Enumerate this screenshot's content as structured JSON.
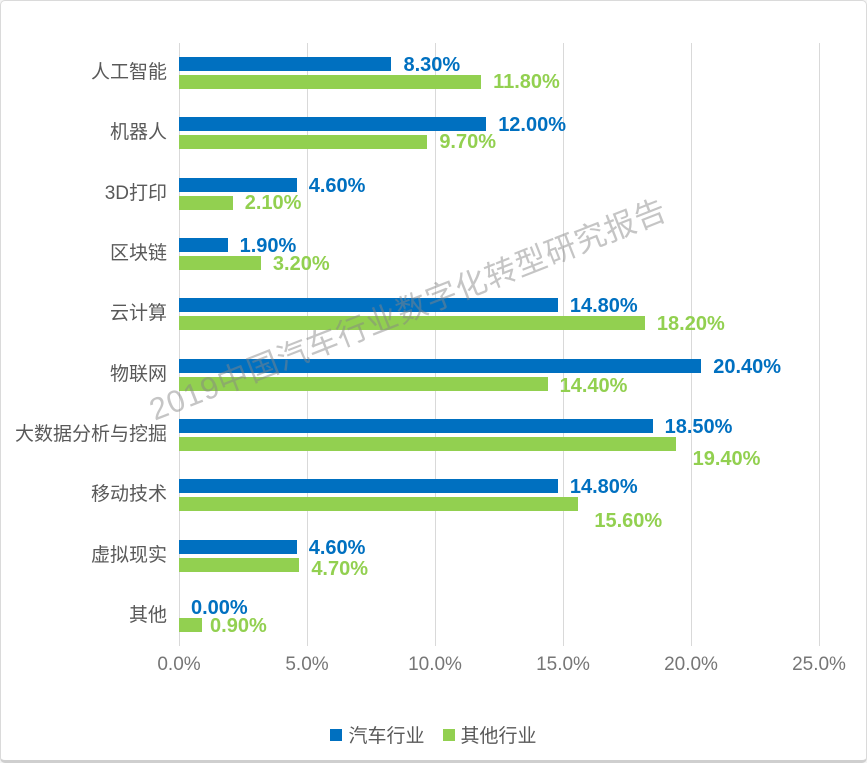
{
  "watermark": "2019中国汽车行业数字化转型研究报告",
  "chart_data": {
    "type": "bar",
    "orientation": "horizontal",
    "title": "",
    "categories": [
      "人工智能",
      "机器人",
      "3D打印",
      "区块链",
      "云计算",
      "物联网",
      "大数据分析与挖掘",
      "移动技术",
      "虚拟现实",
      "其他"
    ],
    "series": [
      {
        "name": "汽车行业",
        "color": "#0070C0",
        "values": [
          8.3,
          12.0,
          4.6,
          1.9,
          14.8,
          20.4,
          18.5,
          14.8,
          4.6,
          0.0
        ],
        "labels": [
          "8.30%",
          "12.00%",
          "4.60%",
          "1.90%",
          "14.80%",
          "20.40%",
          "18.50%",
          "14.80%",
          "4.60%",
          "0.00%"
        ]
      },
      {
        "name": "其他行业",
        "color": "#92D050",
        "values": [
          11.8,
          9.7,
          2.1,
          3.2,
          18.2,
          14.4,
          19.4,
          15.6,
          4.7,
          0.9
        ],
        "labels": [
          "11.80%",
          "9.70%",
          "2.10%",
          "3.20%",
          "18.20%",
          "14.40%",
          "19.40%",
          "15.60%",
          "4.70%",
          "0.90%"
        ]
      }
    ],
    "x_axis": {
      "min": 0,
      "max": 25,
      "ticks": [
        "0.0%",
        "5.0%",
        "10.0%",
        "15.0%",
        "20.0%",
        "25.0%"
      ]
    },
    "grid": true,
    "legend_position": "bottom"
  }
}
